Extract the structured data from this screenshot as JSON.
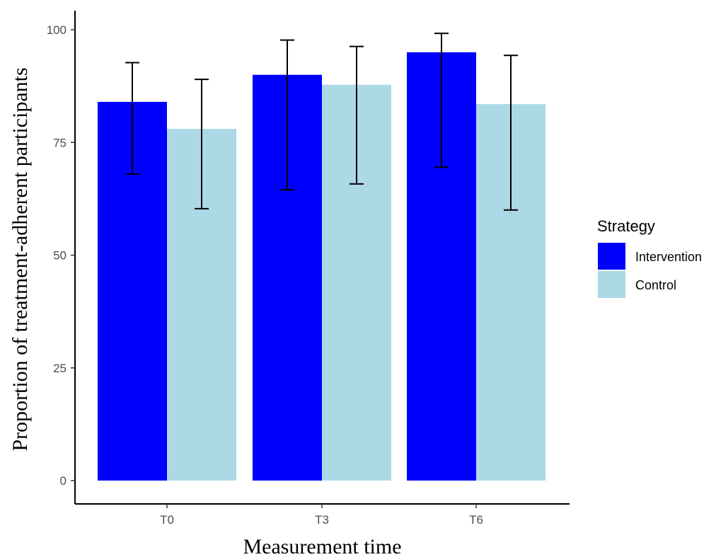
{
  "chart_data": {
    "type": "bar",
    "categories": [
      "T0",
      "T3",
      "T6"
    ],
    "xlabel": "Measurement time",
    "ylabel": "Proportion of treatment-adherent participants",
    "ylim": [
      0,
      100
    ],
    "yticks": [
      0,
      25,
      50,
      75,
      100
    ],
    "grid": false,
    "legend": {
      "title": "Strategy",
      "position": "right"
    },
    "series": [
      {
        "name": "Intervention",
        "color": "#0000ff",
        "values": [
          84,
          90,
          95
        ],
        "error_low": [
          68,
          64.5,
          69.5
        ],
        "error_high": [
          92.7,
          97.7,
          99.2
        ]
      },
      {
        "name": "Control",
        "color": "#add8e6",
        "values": [
          78,
          87.8,
          83.5
        ],
        "error_low": [
          60.3,
          65.8,
          60
        ],
        "error_high": [
          89,
          96.3,
          94.3
        ]
      }
    ]
  }
}
